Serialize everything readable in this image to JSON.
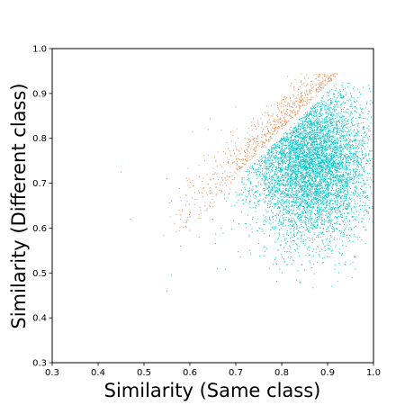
{
  "chart_data": {
    "type": "scatter",
    "title": "",
    "xlabel": "Similarity (Same class)",
    "ylabel": "Similarity (Different class)",
    "xlim": [
      0.3,
      1.0
    ],
    "ylim": [
      0.3,
      1.0
    ],
    "xticks": [
      "0.3",
      "0.4",
      "0.5",
      "0.6",
      "0.7",
      "0.8",
      "0.9",
      "1.0"
    ],
    "yticks": [
      "0.3",
      "0.4",
      "0.5",
      "0.6",
      "0.7",
      "0.8",
      "0.9",
      "1.0"
    ],
    "grid": false,
    "legend": "none",
    "series": [
      {
        "color": "#00c5c8",
        "region": "different-class similarity below same-class similarity",
        "approx_count": 6000,
        "x_range": [
          0.54,
          1.0
        ],
        "y_range": [
          0.46,
          0.93
        ],
        "density_center": [
          0.87,
          0.76
        ],
        "points": [
          [
            0.55,
            0.46
          ],
          [
            0.56,
            0.495
          ],
          [
            0.58,
            0.56
          ],
          [
            0.62,
            0.58
          ],
          [
            0.6,
            0.625
          ],
          [
            0.65,
            0.62
          ],
          [
            0.68,
            0.66
          ],
          [
            0.72,
            0.61
          ],
          [
            0.75,
            0.66
          ],
          [
            0.78,
            0.7
          ],
          [
            0.8,
            0.68
          ],
          [
            0.83,
            0.72
          ],
          [
            0.85,
            0.74
          ],
          [
            0.87,
            0.76
          ],
          [
            0.88,
            0.8
          ],
          [
            0.9,
            0.85
          ],
          [
            0.92,
            0.88
          ],
          [
            0.86,
            0.62
          ],
          [
            0.9,
            0.66
          ],
          [
            0.94,
            0.7
          ],
          [
            0.96,
            0.62
          ],
          [
            0.97,
            0.58
          ],
          [
            0.84,
            0.48
          ],
          [
            0.87,
            0.52
          ],
          [
            0.93,
            0.54
          ],
          [
            0.98,
            0.7
          ],
          [
            1.0,
            0.73
          ],
          [
            0.95,
            0.9
          ],
          [
            0.73,
            0.55
          ],
          [
            0.66,
            0.51
          ]
        ]
      },
      {
        "color": "#f08a4b",
        "region": "different-class similarity above same-class similarity",
        "approx_count": 700,
        "x_range": [
          0.45,
          0.95
        ],
        "y_range": [
          0.58,
          0.94
        ],
        "density_center": [
          0.78,
          0.81
        ],
        "points": [
          [
            0.45,
            0.725
          ],
          [
            0.47,
            0.62
          ],
          [
            0.55,
            0.71
          ],
          [
            0.56,
            0.66
          ],
          [
            0.58,
            0.62
          ],
          [
            0.6,
            0.69
          ],
          [
            0.62,
            0.74
          ],
          [
            0.65,
            0.72
          ],
          [
            0.68,
            0.79
          ],
          [
            0.7,
            0.76
          ],
          [
            0.72,
            0.8
          ],
          [
            0.74,
            0.83
          ],
          [
            0.76,
            0.82
          ],
          [
            0.78,
            0.85
          ],
          [
            0.8,
            0.84
          ],
          [
            0.82,
            0.87
          ],
          [
            0.84,
            0.88
          ],
          [
            0.86,
            0.9
          ],
          [
            0.88,
            0.92
          ],
          [
            0.9,
            0.93
          ],
          [
            0.64,
            0.82
          ],
          [
            0.7,
            0.87
          ]
        ]
      }
    ]
  }
}
